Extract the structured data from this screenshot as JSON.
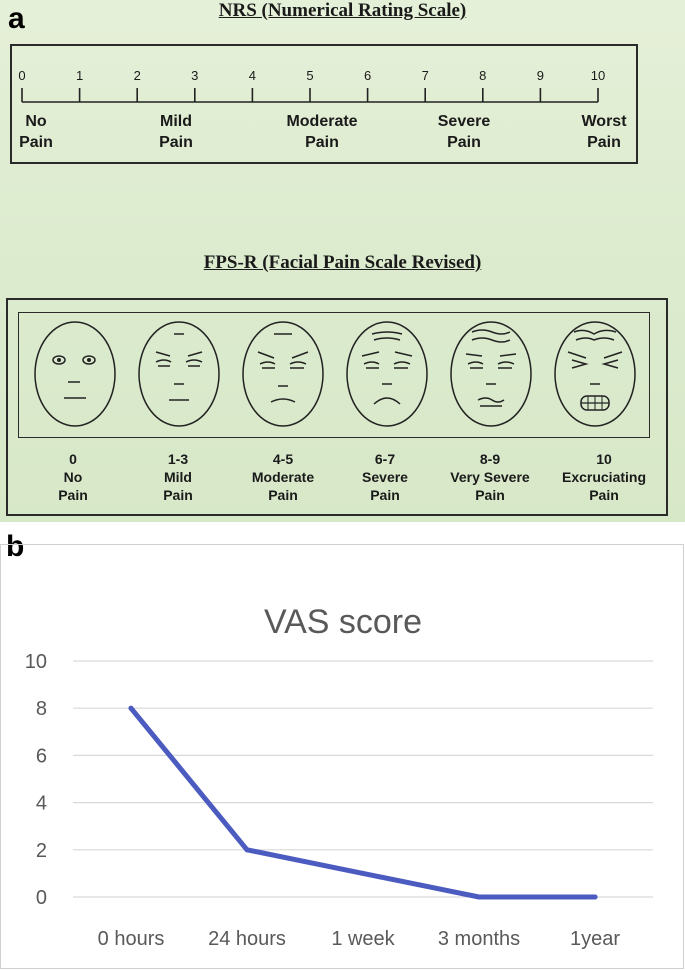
{
  "panel_a": {
    "letter": "a",
    "nrs": {
      "title": "NRS (Numerical Rating Scale)",
      "ticks": [
        "0",
        "1",
        "2",
        "3",
        "4",
        "5",
        "6",
        "7",
        "8",
        "9",
        "10"
      ],
      "labels": [
        {
          "line1": "No",
          "line2": "Pain"
        },
        {
          "line1": "Mild",
          "line2": "Pain"
        },
        {
          "line1": "Moderate",
          "line2": "Pain"
        },
        {
          "line1": "Severe",
          "line2": "Pain"
        },
        {
          "line1": "Worst",
          "line2": "Pain"
        }
      ]
    },
    "fps": {
      "title": "FPS-R (Facial Pain Scale Revised)",
      "faces": [
        {
          "icon": "face-no-pain-icon",
          "value": "0",
          "line1": "No",
          "line2": "Pain"
        },
        {
          "icon": "face-mild-pain-icon",
          "value": "1-3",
          "line1": "Mild",
          "line2": "Pain"
        },
        {
          "icon": "face-moderate-pain-icon",
          "value": "4-5",
          "line1": "Moderate",
          "line2": "Pain"
        },
        {
          "icon": "face-severe-pain-icon",
          "value": "6-7",
          "line1": "Severe",
          "line2": "Pain"
        },
        {
          "icon": "face-very-severe-pain-icon",
          "value": "8-9",
          "line1": "Very Severe",
          "line2": "Pain"
        },
        {
          "icon": "face-excruciating-pain-icon",
          "value": "10",
          "line1": "Excruciating",
          "line2": "Pain"
        }
      ]
    }
  },
  "panel_b": {
    "letter": "b"
  },
  "chart_data": {
    "type": "line",
    "title": "VAS score",
    "xlabel": "",
    "ylabel": "",
    "categories": [
      "0 hours",
      "24 hours",
      "1 week",
      "3 months",
      "1year"
    ],
    "series": [
      {
        "values": [
          8,
          2,
          1,
          0,
          0
        ]
      }
    ],
    "ylim": [
      0,
      10
    ],
    "yticks": [
      0,
      2,
      4,
      6,
      8,
      10
    ],
    "grid": true,
    "legend": "none",
    "colors": {
      "line": "#4b5bbf",
      "grid": "#d9d9d9",
      "text": "#595959"
    }
  }
}
